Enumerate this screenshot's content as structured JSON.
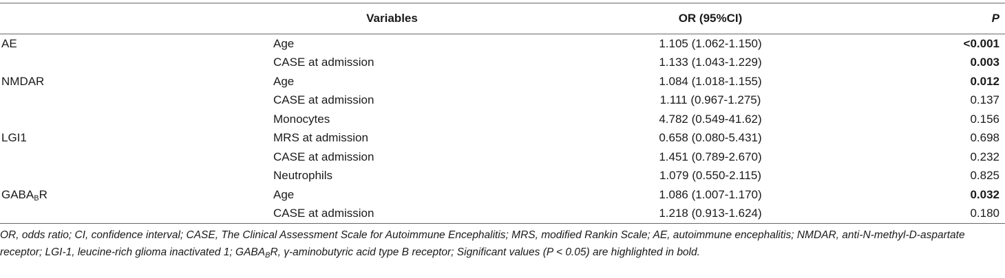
{
  "header": {
    "variables": "Variables",
    "or": "OR (95%CI)",
    "p": "P"
  },
  "rows": [
    {
      "group": "AE",
      "group_sub": "",
      "variable": "Age",
      "or": "1.105 (1.062-1.150)",
      "p": "<0.001",
      "significant": true
    },
    {
      "group": "",
      "group_sub": "",
      "variable": "CASE at admission",
      "or": "1.133 (1.043-1.229)",
      "p": "0.003",
      "significant": true
    },
    {
      "group": "NMDAR",
      "group_sub": "",
      "variable": "Age",
      "or": "1.084 (1.018-1.155)",
      "p": "0.012",
      "significant": true
    },
    {
      "group": "",
      "group_sub": "",
      "variable": "CASE at admission",
      "or": "1.111 (0.967-1.275)",
      "p": "0.137",
      "significant": false
    },
    {
      "group": "",
      "group_sub": "",
      "variable": "Monocytes",
      "or": "4.782 (0.549-41.62)",
      "p": "0.156",
      "significant": false
    },
    {
      "group": "LGI1",
      "group_sub": "",
      "variable": "MRS at admission",
      "or": "0.658 (0.080-5.431)",
      "p": "0.698",
      "significant": false
    },
    {
      "group": "",
      "group_sub": "",
      "variable": "CASE at admission",
      "or": "1.451 (0.789-2.670)",
      "p": "0.232",
      "significant": false
    },
    {
      "group": "",
      "group_sub": "",
      "variable": "Neutrophils",
      "or": "1.079 (0.550-2.115)",
      "p": "0.825",
      "significant": false
    },
    {
      "group": "GABA",
      "group_sub": "B",
      "group_suffix": "R",
      "variable": "Age",
      "or": "1.086 (1.007-1.170)",
      "p": "0.032",
      "significant": true
    },
    {
      "group": "",
      "group_sub": "",
      "variable": "CASE at admission",
      "or": "1.218 (0.913-1.624)",
      "p": "0.180",
      "significant": false
    }
  ],
  "footnote": {
    "part1": "OR, odds ratio; CI, confidence interval; CASE, The Clinical Assessment Scale for Autoimmune Encephalitis; MRS, modified Rankin Scale; AE, autoimmune encephalitis; NMDAR, anti-N-methyl-D-aspartate receptor; LGI-1, leucine-rich glioma inactivated 1; GABA",
    "sub": "B",
    "part2": "R, γ-aminobutyric acid type B receptor; Significant values (P < 0.05) are highlighted in bold."
  }
}
